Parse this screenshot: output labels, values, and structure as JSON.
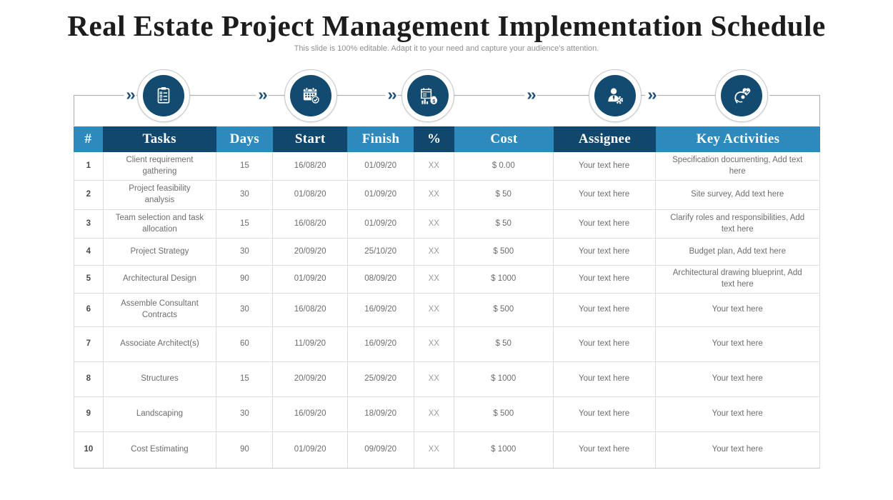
{
  "slide": {
    "title": "Real Estate Project Management Implementation Schedule",
    "subtitle": "This slide is 100% editable. Adapt it to your need and capture your audience’s attention."
  },
  "colors": {
    "accent_light": "#2E8ABD",
    "accent_dark": "#12476D",
    "circle_navy": "#134A70",
    "grid_line": "#DCDCDC",
    "connector_line": "#B3B3B3",
    "body_text": "#6D6D6D"
  },
  "process": {
    "chevron": "››",
    "end_chevron": "‹",
    "steps": [
      {
        "icon": "clipboard-checklist-icon"
      },
      {
        "icon": "calendar-check-icon"
      },
      {
        "icon": "cost-money-chart-icon"
      },
      {
        "icon": "assignee-gear-icon"
      },
      {
        "icon": "satisfaction-heart-icon"
      }
    ]
  },
  "table": {
    "columns": [
      "#",
      "Tasks",
      "Days",
      "Start",
      "Finish",
      "%",
      "Cost",
      "Assignee",
      "Key Activities"
    ],
    "rows": [
      [
        "1",
        "Client requirement gathering",
        "15",
        "16/08/20",
        "01/09/20",
        "XX",
        "$ 0.00",
        "Your text here",
        "Specification documenting, Add text here"
      ],
      [
        "2",
        "Project feasibility analysis",
        "30",
        "01/08/20",
        "01/09/20",
        "XX",
        "$ 50",
        "Your text here",
        "Site survey, Add text here"
      ],
      [
        "3",
        "Team selection and task allocation",
        "15",
        "16/08/20",
        "01/09/20",
        "XX",
        "$ 50",
        "Your text here",
        "Clarify roles and responsibilities, Add text here"
      ],
      [
        "4",
        "Project Strategy",
        "30",
        "20/09/20",
        "25/10/20",
        "XX",
        "$ 500",
        "Your text here",
        "Budget plan, Add text here"
      ],
      [
        "5",
        "Architectural Design",
        "90",
        "01/09/20",
        "08/09/20",
        "XX",
        "$ 1000",
        "Your text here",
        "Architectural drawing blueprint, Add text here"
      ],
      [
        "6",
        "Assemble Consultant Contracts",
        "30",
        "16/08/20",
        "16/09/20",
        "XX",
        "$ 500",
        "Your text here",
        "Your text here"
      ],
      [
        "7",
        "Associate Architect(s)",
        "60",
        "11/09/20",
        "16/09/20",
        "XX",
        "$ 50",
        "Your text here",
        "Your text here"
      ],
      [
        "8",
        "Structures",
        "15",
        "20/09/20",
        "25/09/20",
        "XX",
        "$ 1000",
        "Your text here",
        "Your text here"
      ],
      [
        "9",
        "Landscaping",
        "30",
        "16/09/20",
        "18/09/20",
        "XX",
        "$ 500",
        "Your text here",
        "Your text here"
      ],
      [
        "10",
        "Cost Estimating",
        "90",
        "01/09/20",
        "09/09/20",
        "XX",
        "$ 1000",
        "Your text here",
        "Your text here"
      ]
    ]
  }
}
